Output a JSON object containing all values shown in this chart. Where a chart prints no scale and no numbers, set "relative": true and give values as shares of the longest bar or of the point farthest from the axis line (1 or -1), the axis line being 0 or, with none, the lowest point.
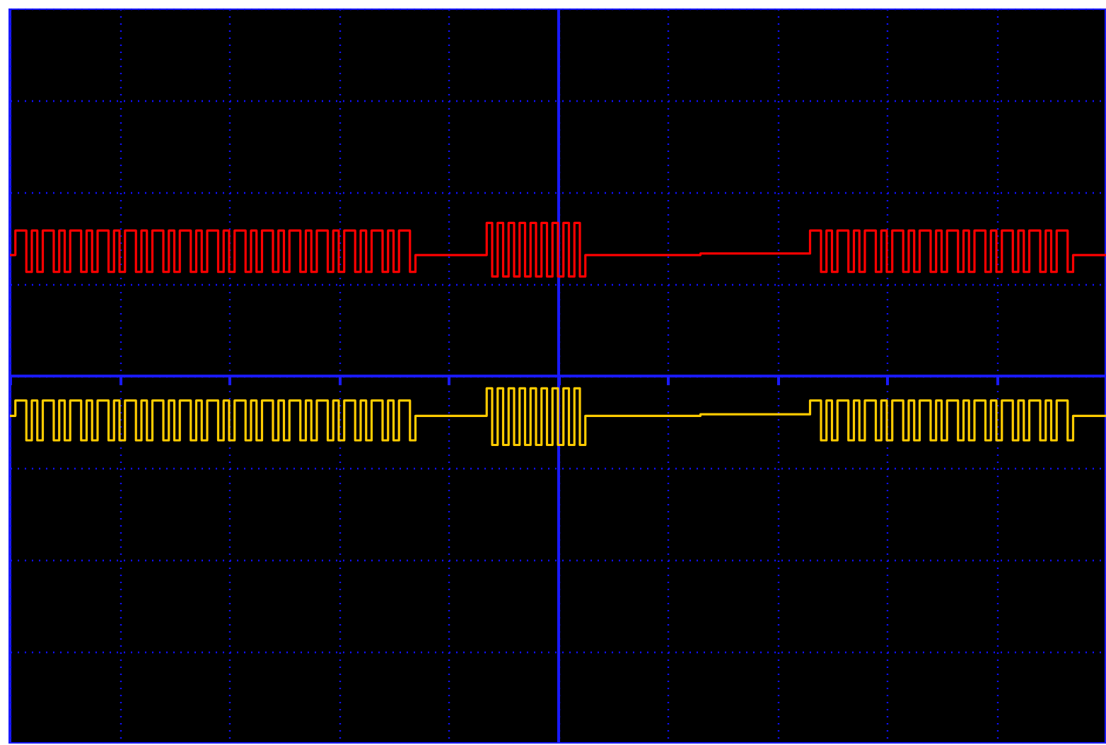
{
  "chart_data": {
    "type": "step",
    "relative": true,
    "grid": true,
    "ref_lines": [
      {
        "axis": "y",
        "value": 0,
        "color": "#1a1aff"
      }
    ],
    "categories": [
      null,
      null,
      null,
      null,
      null,
      null,
      null,
      null,
      null,
      null,
      null,
      null,
      null,
      null,
      null,
      null,
      null,
      null,
      null,
      null,
      null,
      null,
      null,
      null,
      null,
      null,
      null,
      null,
      null,
      null,
      null,
      null,
      null,
      null,
      null,
      null,
      null,
      null,
      null,
      null,
      null,
      null,
      null,
      null,
      null,
      null,
      null,
      null,
      null,
      null,
      null,
      null,
      null,
      null,
      null,
      null,
      null,
      null,
      null,
      null,
      null,
      null,
      null,
      null,
      null,
      null,
      null,
      null,
      null,
      null,
      null,
      null,
      null,
      null,
      null,
      null,
      null,
      null,
      null,
      null,
      null,
      null,
      null,
      null,
      null,
      null,
      null,
      null,
      null,
      null,
      null,
      null,
      null,
      null,
      null,
      null,
      null,
      null,
      null,
      null,
      null,
      null,
      null,
      null,
      null,
      null,
      null,
      null,
      null,
      null,
      null,
      null,
      null,
      null,
      null,
      null,
      null,
      null,
      null,
      null,
      null,
      null,
      null,
      null,
      null,
      null,
      null,
      null,
      null,
      null,
      null,
      null,
      null,
      null,
      null,
      null,
      null,
      null,
      null,
      null,
      null,
      null,
      null,
      null,
      null,
      null,
      null,
      null,
      null,
      null,
      null,
      null,
      null,
      null,
      null,
      null,
      null,
      null,
      null,
      null,
      null,
      null,
      null,
      null,
      null,
      null,
      null,
      null,
      null,
      null,
      null,
      null,
      null,
      null,
      null,
      null,
      null,
      null,
      null,
      null,
      null,
      null,
      null,
      null,
      null,
      null,
      null,
      null,
      null,
      null,
      null,
      null,
      null,
      null,
      null,
      null,
      null,
      null,
      null,
      null,
      null
    ],
    "series": [
      {
        "color": "#ff0000",
        "values": [
          0.79,
          0.95,
          0.95,
          0.68,
          0.95,
          0.68,
          0.95,
          0.95,
          0.68,
          0.95,
          0.68,
          0.95,
          0.95,
          0.68,
          0.95,
          0.68,
          0.95,
          0.95,
          0.68,
          0.95,
          0.68,
          0.95,
          0.95,
          0.68,
          0.95,
          0.68,
          0.95,
          0.95,
          0.68,
          0.95,
          0.68,
          0.95,
          0.95,
          0.68,
          0.95,
          0.68,
          0.95,
          0.95,
          0.68,
          0.95,
          0.68,
          0.95,
          0.95,
          0.68,
          0.95,
          0.68,
          0.95,
          0.95,
          0.68,
          0.95,
          0.68,
          0.95,
          0.95,
          0.68,
          0.95,
          0.68,
          0.95,
          0.95,
          0.68,
          0.95,
          0.68,
          0.95,
          0.95,
          0.68,
          0.95,
          0.68,
          0.95,
          0.95,
          0.68,
          0.95,
          0.68,
          0.95,
          0.95,
          0.68,
          0.79,
          0.79,
          0.79,
          0.79,
          0.79,
          0.79,
          0.79,
          0.79,
          0.79,
          0.79,
          0.79,
          0.79,
          0.79,
          1.0,
          0.65,
          1.0,
          0.65,
          1.0,
          0.65,
          1.0,
          0.65,
          1.0,
          0.65,
          1.0,
          0.65,
          1.0,
          0.65,
          1.0,
          0.65,
          1.0,
          0.65,
          0.79,
          0.79,
          0.79,
          0.79,
          0.79,
          0.79,
          0.79,
          0.79,
          0.79,
          0.79,
          0.79,
          0.79,
          0.79,
          0.79,
          0.79,
          0.79,
          0.79,
          0.79,
          0.79,
          0.79,
          0.79,
          0.8,
          0.8,
          0.8,
          0.8,
          0.8,
          0.8,
          0.8,
          0.8,
          0.8,
          0.8,
          0.8,
          0.8,
          0.8,
          0.8,
          0.8,
          0.8,
          0.8,
          0.8,
          0.8,
          0.8,
          0.95,
          0.95,
          0.68,
          0.95,
          0.68,
          0.95,
          0.95,
          0.68,
          0.95,
          0.68,
          0.95,
          0.95,
          0.68,
          0.95,
          0.68,
          0.95,
          0.95,
          0.68,
          0.95,
          0.68,
          0.95,
          0.95,
          0.68,
          0.95,
          0.68,
          0.95,
          0.95,
          0.68,
          0.95,
          0.68,
          0.95,
          0.95,
          0.68,
          0.95,
          0.68,
          0.95,
          0.95,
          0.68,
          0.95,
          0.68,
          0.95,
          0.95,
          0.68,
          0.95,
          0.68,
          0.95,
          0.95,
          0.68,
          0.79,
          0.79,
          0.79,
          0.79,
          0.79,
          0.79,
          0.79
        ]
      },
      {
        "color": "#ffcc00",
        "values": [
          -0.26,
          -0.16,
          -0.16,
          -0.42,
          -0.16,
          -0.42,
          -0.16,
          -0.16,
          -0.42,
          -0.16,
          -0.42,
          -0.16,
          -0.16,
          -0.42,
          -0.16,
          -0.42,
          -0.16,
          -0.16,
          -0.42,
          -0.16,
          -0.42,
          -0.16,
          -0.16,
          -0.42,
          -0.16,
          -0.42,
          -0.16,
          -0.16,
          -0.42,
          -0.16,
          -0.42,
          -0.16,
          -0.16,
          -0.42,
          -0.16,
          -0.42,
          -0.16,
          -0.16,
          -0.42,
          -0.16,
          -0.42,
          -0.16,
          -0.16,
          -0.42,
          -0.16,
          -0.42,
          -0.16,
          -0.16,
          -0.42,
          -0.16,
          -0.42,
          -0.16,
          -0.16,
          -0.42,
          -0.16,
          -0.42,
          -0.16,
          -0.16,
          -0.42,
          -0.16,
          -0.42,
          -0.16,
          -0.16,
          -0.42,
          -0.16,
          -0.42,
          -0.16,
          -0.16,
          -0.42,
          -0.16,
          -0.42,
          -0.16,
          -0.16,
          -0.42,
          -0.26,
          -0.26,
          -0.26,
          -0.26,
          -0.26,
          -0.26,
          -0.26,
          -0.26,
          -0.26,
          -0.26,
          -0.26,
          -0.26,
          -0.26,
          -0.08,
          -0.45,
          -0.08,
          -0.45,
          -0.08,
          -0.45,
          -0.08,
          -0.45,
          -0.08,
          -0.45,
          -0.08,
          -0.45,
          -0.08,
          -0.45,
          -0.08,
          -0.45,
          -0.08,
          -0.45,
          -0.26,
          -0.26,
          -0.26,
          -0.26,
          -0.26,
          -0.26,
          -0.26,
          -0.26,
          -0.26,
          -0.26,
          -0.26,
          -0.26,
          -0.26,
          -0.26,
          -0.26,
          -0.26,
          -0.26,
          -0.26,
          -0.26,
          -0.26,
          -0.26,
          -0.25,
          -0.25,
          -0.25,
          -0.25,
          -0.25,
          -0.25,
          -0.25,
          -0.25,
          -0.25,
          -0.25,
          -0.25,
          -0.25,
          -0.25,
          -0.25,
          -0.25,
          -0.25,
          -0.25,
          -0.25,
          -0.25,
          -0.25,
          -0.16,
          -0.16,
          -0.42,
          -0.16,
          -0.42,
          -0.16,
          -0.16,
          -0.42,
          -0.16,
          -0.42,
          -0.16,
          -0.16,
          -0.42,
          -0.16,
          -0.42,
          -0.16,
          -0.16,
          -0.42,
          -0.16,
          -0.42,
          -0.16,
          -0.16,
          -0.42,
          -0.16,
          -0.42,
          -0.16,
          -0.16,
          -0.42,
          -0.16,
          -0.42,
          -0.16,
          -0.16,
          -0.42,
          -0.16,
          -0.42,
          -0.16,
          -0.16,
          -0.42,
          -0.16,
          -0.42,
          -0.16,
          -0.16,
          -0.42,
          -0.16,
          -0.42,
          -0.16,
          -0.16,
          -0.42,
          -0.26,
          -0.26,
          -0.26,
          -0.26,
          -0.26,
          -0.26,
          -0.26
        ]
      }
    ]
  }
}
